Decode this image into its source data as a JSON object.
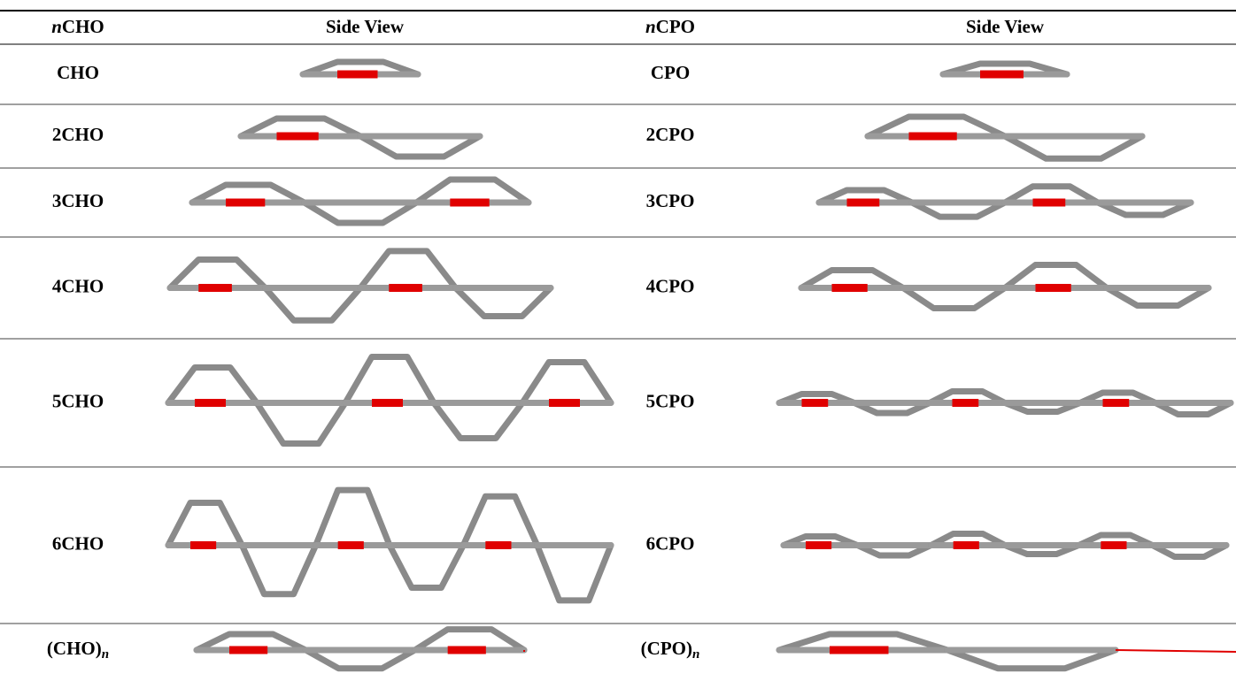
{
  "table": {
    "header": [
      {
        "italic": "n",
        "text": "CHO"
      },
      {
        "text": "Side View"
      },
      {
        "italic": "n",
        "text": "CPO"
      },
      {
        "text": "Side View"
      }
    ],
    "rows": [
      [
        {
          "text": "CHO"
        },
        {
          "text": "CPO"
        }
      ],
      [
        {
          "text": "2CHO"
        },
        {
          "text": "2CPO"
        }
      ],
      [
        {
          "text": "3CHO"
        },
        {
          "text": "3CPO"
        }
      ],
      [
        {
          "text": "4CHO"
        },
        {
          "text": "4CPO"
        }
      ],
      [
        {
          "text": "5CHO"
        },
        {
          "text": "5CPO"
        }
      ],
      [
        {
          "text": "6CHO"
        },
        {
          "text": "6CPO"
        }
      ],
      [
        {
          "text": "(CHO)",
          "sub": "n"
        },
        {
          "text": "(CPO)",
          "sub": "n"
        }
      ]
    ]
  }
}
